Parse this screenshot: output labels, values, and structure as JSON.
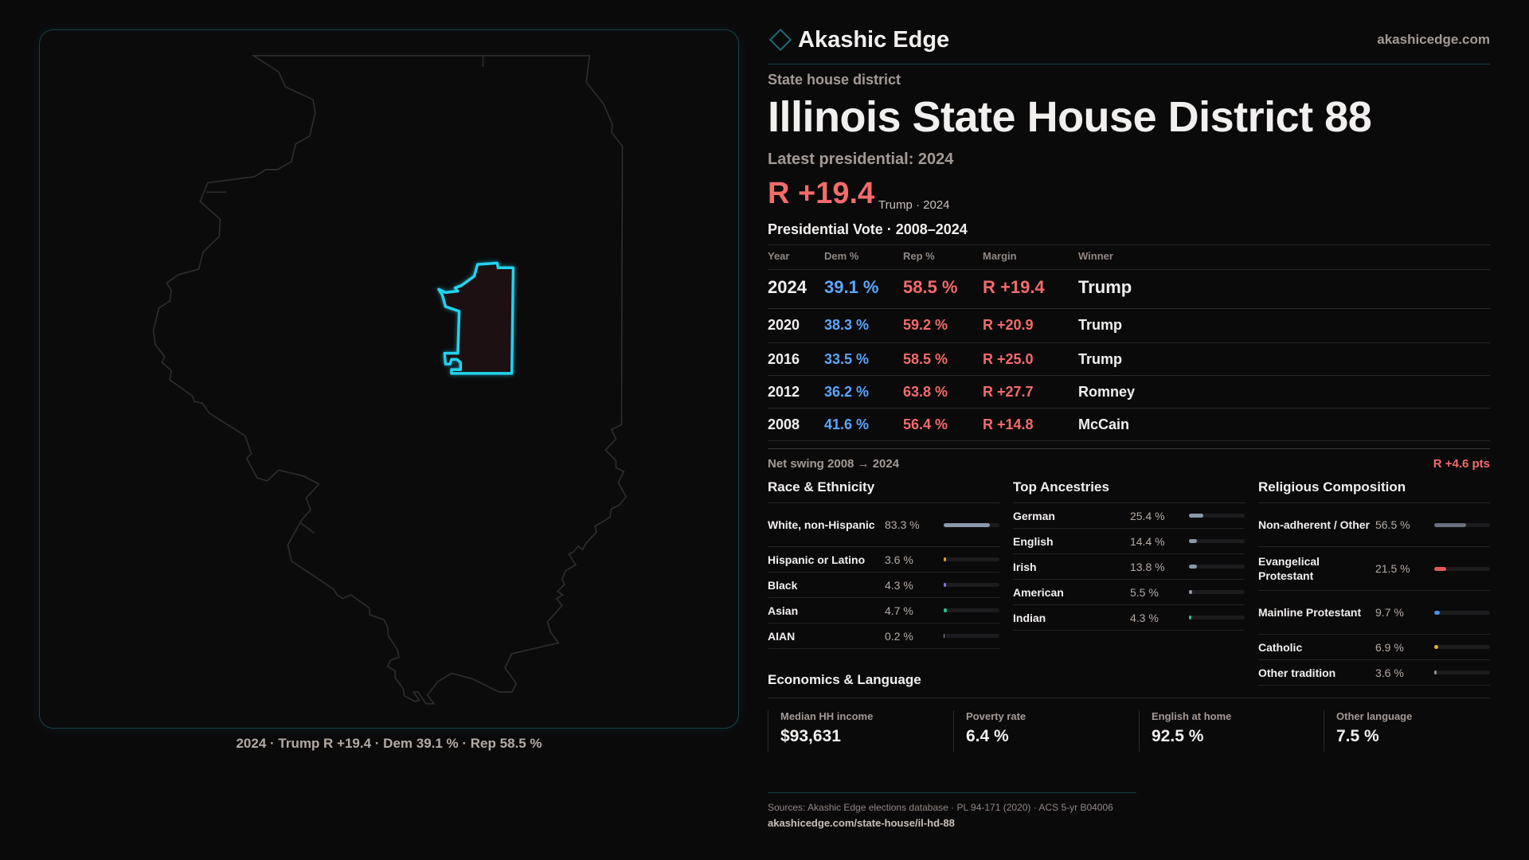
{
  "brand": {
    "name": "Akashic Edge",
    "site": "akashicedge.com",
    "logo_icon": "diamond-icon"
  },
  "kind": "State house district",
  "title": "Illinois State House District 88",
  "latest": "Latest presidential: 2024",
  "headline": {
    "margin": "R +19.4",
    "sub": "Trump · 2024"
  },
  "map": {
    "caption": "2024 · Trump R +19.4 · Dem 39.1 % · Rep 58.5 %",
    "highlight_color": "#22d3ee"
  },
  "vote": {
    "title": "Presidential Vote · 2008–2024",
    "headers": [
      "Year",
      "Dem %",
      "Rep %",
      "Margin",
      "Winner"
    ],
    "rows": [
      [
        "2024",
        "39.1 %",
        "58.5 %",
        "R +19.4",
        "Trump"
      ],
      [
        "2020",
        "38.3 %",
        "59.2 %",
        "R +20.9",
        "Trump"
      ],
      [
        "2016",
        "33.5 %",
        "58.5 %",
        "R +25.0",
        "Trump"
      ],
      [
        "2012",
        "36.2 %",
        "63.8 %",
        "R +27.7",
        "Romney"
      ],
      [
        "2008",
        "41.6 %",
        "56.4 %",
        "R +14.8",
        "McCain"
      ]
    ]
  },
  "swing": {
    "label": "Net swing 2008 → 2024",
    "value": "R +4.6 pts"
  },
  "race": {
    "title": "Race & Ethnicity",
    "items": [
      {
        "label": "White, non-Hispanic",
        "value": "83.3 %",
        "pct": 83.3,
        "color": "#8a98ab"
      },
      {
        "label": "Hispanic or Latino",
        "value": "3.6 %",
        "pct": 3.6,
        "color": "#e0a030"
      },
      {
        "label": "Black",
        "value": "4.3 %",
        "pct": 4.3,
        "color": "#8b6fe0"
      },
      {
        "label": "Asian",
        "value": "4.7 %",
        "pct": 4.7,
        "color": "#2bc08a"
      },
      {
        "label": "AIAN",
        "value": "0.2 %",
        "pct": 0.2,
        "color": "#8a98ab"
      }
    ]
  },
  "ancestry": {
    "title": "Top Ancestries",
    "items": [
      {
        "label": "German",
        "value": "25.4 %",
        "pct": 25.4,
        "color": "#8a98ab"
      },
      {
        "label": "English",
        "value": "14.4 %",
        "pct": 14.4,
        "color": "#8a98ab"
      },
      {
        "label": "Irish",
        "value": "13.8 %",
        "pct": 13.8,
        "color": "#8a98ab"
      },
      {
        "label": "American",
        "value": "5.5 %",
        "pct": 5.5,
        "color": "#8a98ab"
      },
      {
        "label": "Indian",
        "value": "4.3 %",
        "pct": 4.3,
        "color": "#2bc08a"
      }
    ]
  },
  "religion": {
    "title": "Religious Composition",
    "items": [
      {
        "label": "Non-adherent / Other",
        "value": "56.5 %",
        "pct": 56.5,
        "color": "#6b7080"
      },
      {
        "label": "Evangelical Protestant",
        "value": "21.5 %",
        "pct": 21.5,
        "color": "#e0585a"
      },
      {
        "label": "Mainline Protestant",
        "value": "9.7 %",
        "pct": 9.7,
        "color": "#4a8fe0"
      },
      {
        "label": "Catholic",
        "value": "6.9 %",
        "pct": 6.9,
        "color": "#e0b030"
      },
      {
        "label": "Other tradition",
        "value": "3.6 %",
        "pct": 3.6,
        "color": "#8a8f9a"
      }
    ]
  },
  "econ": {
    "title": "Economics & Language",
    "cards": [
      {
        "label": "Median HH income",
        "value": "$93,631"
      },
      {
        "label": "Poverty rate",
        "value": "6.4 %"
      },
      {
        "label": "English at home",
        "value": "92.5 %"
      },
      {
        "label": "Other language",
        "value": "7.5 %"
      }
    ]
  },
  "sources": "Sources: Akashic Edge elections database · PL 94-171 (2020) · ACS 5-yr B04006",
  "url": "akashicedge.com/state-house/il-hd-88"
}
